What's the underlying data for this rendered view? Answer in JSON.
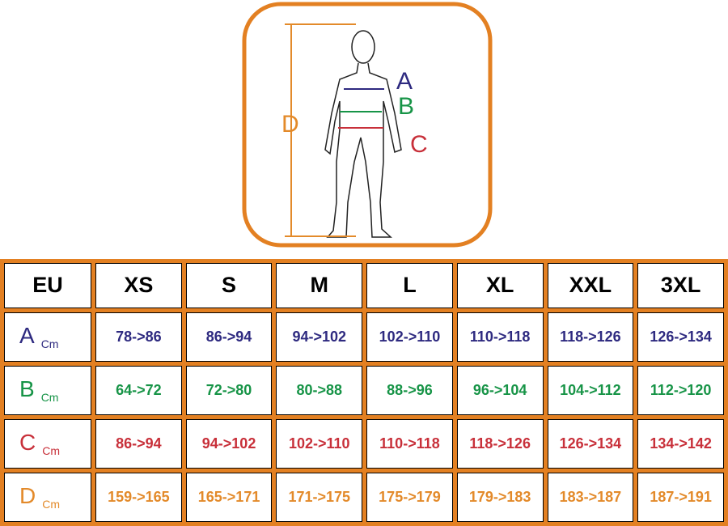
{
  "figure": {
    "labels": [
      "A",
      "B",
      "C",
      "D"
    ]
  },
  "table": {
    "header": [
      "EU",
      "XS",
      "S",
      "M",
      "L",
      "XL",
      "XXL",
      "3XL"
    ],
    "rows": [
      {
        "label": "A",
        "unit": "Cm",
        "cells": [
          "78->86",
          "86->94",
          "94->102",
          "102->110",
          "110->118",
          "118->126",
          "126->134"
        ]
      },
      {
        "label": "B",
        "unit": "Cm",
        "cells": [
          "64->72",
          "72->80",
          "80->88",
          "88->96",
          "96->104",
          "104->112",
          "112->120"
        ]
      },
      {
        "label": "C",
        "unit": "Cm",
        "cells": [
          "86->94",
          "94->102",
          "102->110",
          "110->118",
          "118->126",
          "126->134",
          "134->142"
        ]
      },
      {
        "label": "D",
        "unit": "Cm",
        "cells": [
          "159->165",
          "165->171",
          "171->175",
          "175->179",
          "179->183",
          "183->187",
          "187->191"
        ]
      }
    ]
  }
}
